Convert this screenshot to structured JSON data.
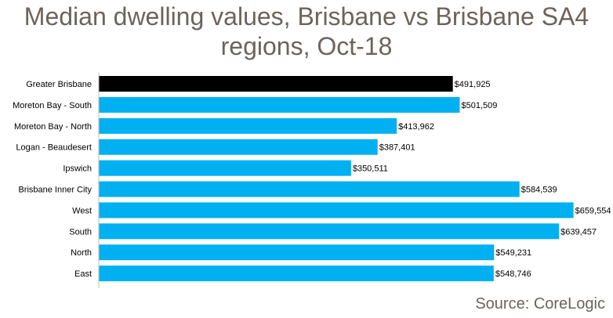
{
  "chart_data": {
    "type": "bar",
    "orientation": "horizontal",
    "title_line1": "Median dwelling values, Brisbane vs Brisbane SA4",
    "title_line2": "regions, Oct-18",
    "categories": [
      "Greater Brisbane",
      "Moreton Bay - South",
      "Moreton Bay - North",
      "Logan - Beaudesert",
      "Ipswich",
      "Brisbane Inner City",
      "West",
      "South",
      "North",
      "East"
    ],
    "values": [
      491925,
      501509,
      413962,
      387401,
      350511,
      584539,
      659554,
      639457,
      549231,
      548746
    ],
    "value_labels": [
      "$491,925",
      "$501,509",
      "$413,962",
      "$387,401",
      "$350,511",
      "$584,539",
      "$659,554",
      "$639,457",
      "$549,231",
      "$548,746"
    ],
    "xlim": [
      0,
      660000
    ],
    "highlight_index": 0,
    "colors": {
      "highlight": "#000000",
      "bar": "#00b0f0",
      "axis": "#bfbfbf"
    }
  },
  "source": "Source: CoreLogic"
}
